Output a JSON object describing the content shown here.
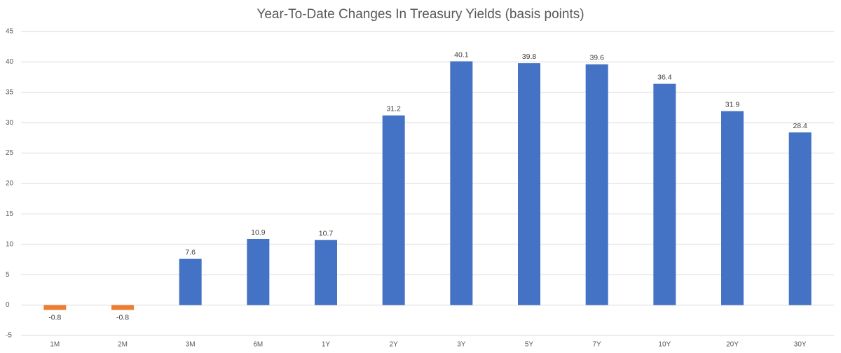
{
  "chart_data": {
    "type": "bar",
    "title": "Year-To-Date Changes In Treasury Yields (basis points)",
    "categories": [
      "1M",
      "2M",
      "3M",
      "6M",
      "1Y",
      "2Y",
      "3Y",
      "5Y",
      "7Y",
      "10Y",
      "20Y",
      "30Y"
    ],
    "values": [
      -0.8,
      -0.8,
      7.6,
      10.9,
      10.7,
      31.2,
      40.1,
      39.8,
      39.6,
      36.4,
      31.9,
      28.4
    ],
    "color": "#4472c4",
    "negative_color": "#ed7d31",
    "ylim": [
      -5,
      45
    ],
    "yticks": [
      -5,
      0,
      5,
      10,
      15,
      20,
      25,
      30,
      35,
      40,
      45
    ],
    "grid": true
  }
}
